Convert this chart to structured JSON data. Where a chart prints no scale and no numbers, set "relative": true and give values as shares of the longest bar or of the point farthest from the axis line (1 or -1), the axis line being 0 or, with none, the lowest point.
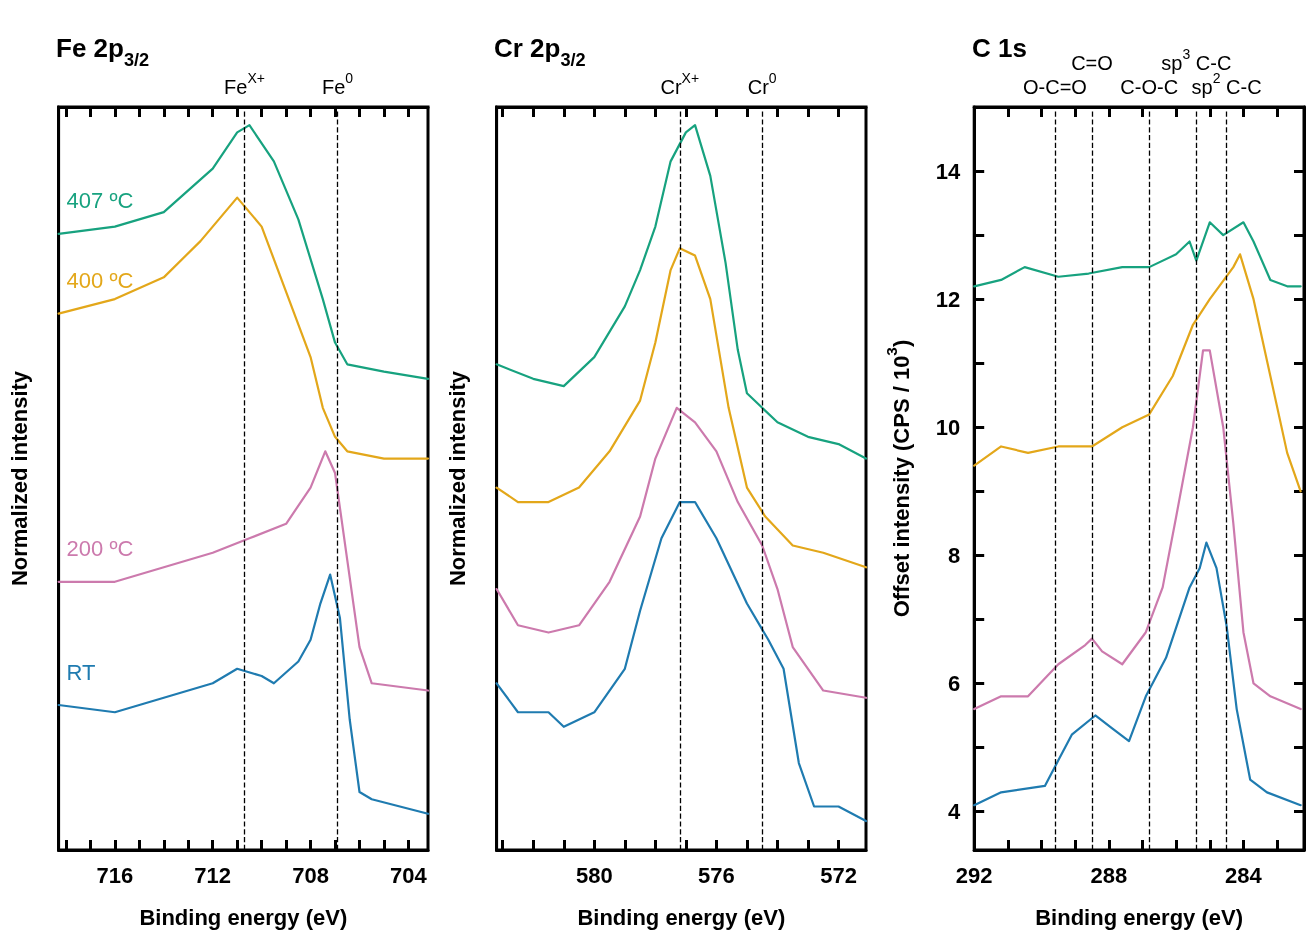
{
  "chart_data": [
    {
      "type": "line",
      "title": "Fe 2p$_{3/2}$",
      "xlabel": "Binding energy (eV)",
      "ylabel": "Normalized intensity",
      "relative": true,
      "xlim": [
        718.3,
        703.2
      ],
      "xticks": [
        704,
        {
          "value": 705,
          "label": null
        },
        {
          "value": 706,
          "label": null
        },
        {
          "value": 707,
          "label": null
        },
        708,
        {
          "value": 709,
          "label": null
        },
        {
          "value": 710,
          "label": null
        },
        {
          "value": 711,
          "label": null
        },
        712,
        {
          "value": 713,
          "label": null
        },
        {
          "value": 714,
          "label": null
        },
        {
          "value": 715,
          "label": null
        },
        716,
        {
          "value": 717,
          "label": null
        },
        {
          "value": 718,
          "label": null
        }
      ],
      "ref_lines": [
        {
          "axis": "x",
          "value": 710.7,
          "label": "Fe$^{X+}$",
          "line_style": "dashed"
        },
        {
          "axis": "x",
          "value": 706.9,
          "label": "Fe$^{0}$",
          "line_style": "dashed"
        }
      ],
      "series": [
        {
          "name": "407 ºC",
          "color": "#17a27f",
          "x": [
            718.3,
            716,
            714,
            712,
            711,
            710.5,
            709.5,
            708.5,
            707.5,
            707,
            706.5,
            705,
            703.2
          ],
          "values": [
            0.85,
            0.86,
            0.88,
            0.94,
            0.99,
            1.0,
            0.95,
            0.87,
            0.76,
            0.7,
            0.67,
            0.66,
            0.65
          ]
        },
        {
          "name": "400 ºC",
          "color": "#e3a71a",
          "x": [
            718.3,
            716,
            714,
            712.5,
            711,
            710,
            709,
            708,
            707.5,
            707,
            706.5,
            705,
            703.2
          ],
          "values": [
            0.74,
            0.76,
            0.79,
            0.84,
            0.9,
            0.86,
            0.77,
            0.68,
            0.61,
            0.57,
            0.55,
            0.54,
            0.54
          ]
        },
        {
          "name": "200 ºC",
          "color": "#cc7aad",
          "x": [
            718.3,
            716,
            714,
            712,
            710.5,
            709,
            708,
            707.4,
            707,
            706.5,
            706,
            705.5,
            703.2
          ],
          "values": [
            0.37,
            0.37,
            0.39,
            0.41,
            0.43,
            0.45,
            0.5,
            0.55,
            0.52,
            0.4,
            0.28,
            0.23,
            0.22
          ]
        },
        {
          "name": "RT",
          "color": "#1f7bb0",
          "x": [
            718.3,
            716,
            714,
            712,
            711,
            710,
            709.5,
            708.5,
            708,
            707.6,
            707.2,
            706.8,
            706.4,
            706,
            705.5,
            703.2
          ],
          "values": [
            0.2,
            0.19,
            0.21,
            0.23,
            0.25,
            0.24,
            0.23,
            0.26,
            0.29,
            0.34,
            0.38,
            0.32,
            0.18,
            0.08,
            0.07,
            0.05
          ]
        }
      ]
    },
    {
      "type": "line",
      "title": "Cr 2p$_{3/2}$",
      "xlabel": "Binding energy (eV)",
      "ylabel": "Normalized intensity",
      "relative": true,
      "xlim": [
        583.2,
        571.1
      ],
      "xticks": [
        572,
        {
          "value": 573,
          "label": null
        },
        {
          "value": 574,
          "label": null
        },
        {
          "value": 575,
          "label": null
        },
        576,
        {
          "value": 577,
          "label": null
        },
        {
          "value": 578,
          "label": null
        },
        {
          "value": 579,
          "label": null
        },
        580,
        {
          "value": 581,
          "label": null
        },
        {
          "value": 582,
          "label": null
        },
        {
          "value": 583,
          "label": null
        }
      ],
      "ref_lines": [
        {
          "axis": "x",
          "value": 577.2,
          "label": "Cr$^{X+}$",
          "line_style": "dashed"
        },
        {
          "axis": "x",
          "value": 574.5,
          "label": "Cr$^{0}$",
          "line_style": "dashed"
        }
      ],
      "series": [
        {
          "color": "#17a27f",
          "x": [
            583.2,
            582,
            581,
            580,
            579,
            578.5,
            578,
            577.5,
            577,
            576.7,
            576.2,
            575.7,
            575.3,
            575,
            574.5,
            574,
            573,
            572,
            571.1
          ],
          "values": [
            0.67,
            0.65,
            0.64,
            0.68,
            0.75,
            0.8,
            0.86,
            0.95,
            0.99,
            1.0,
            0.93,
            0.81,
            0.69,
            0.63,
            0.61,
            0.59,
            0.57,
            0.56,
            0.54
          ]
        },
        {
          "color": "#e3a71a",
          "x": [
            583.2,
            582.5,
            581.5,
            580.5,
            579.5,
            578.5,
            578,
            577.5,
            577.2,
            576.7,
            576.2,
            575.6,
            575,
            574.4,
            573.5,
            572.5,
            571.1
          ],
          "values": [
            0.5,
            0.48,
            0.48,
            0.5,
            0.55,
            0.62,
            0.7,
            0.8,
            0.83,
            0.82,
            0.76,
            0.61,
            0.5,
            0.46,
            0.42,
            0.41,
            0.39
          ]
        },
        {
          "color": "#cc7aad",
          "x": [
            583.2,
            582.5,
            581.5,
            580.5,
            579.5,
            578.5,
            578,
            577.3,
            576.7,
            576,
            575.3,
            574.5,
            574,
            573.5,
            572.5,
            571.1
          ],
          "values": [
            0.36,
            0.31,
            0.3,
            0.31,
            0.37,
            0.46,
            0.54,
            0.61,
            0.59,
            0.55,
            0.48,
            0.42,
            0.36,
            0.28,
            0.22,
            0.21
          ]
        },
        {
          "color": "#1f7bb0",
          "x": [
            583.2,
            582.5,
            581.5,
            581,
            580,
            579,
            578.5,
            577.8,
            577.2,
            576.7,
            576,
            575,
            574.3,
            573.8,
            573.3,
            572.8,
            572,
            571.1
          ],
          "values": [
            0.23,
            0.19,
            0.19,
            0.17,
            0.19,
            0.25,
            0.33,
            0.43,
            0.48,
            0.48,
            0.43,
            0.34,
            0.29,
            0.25,
            0.12,
            0.06,
            0.06,
            0.04
          ]
        }
      ]
    },
    {
      "type": "line",
      "title": "C 1s",
      "xlabel": "Binding energy (eV)",
      "ylabel": "Offset intensity (CPS / 10$^{3}$)",
      "xlim": [
        292,
        282.2
      ],
      "xticks": [
        {
          "value": 283,
          "label": null
        },
        284,
        {
          "value": 285,
          "label": null
        },
        {
          "value": 286,
          "label": null
        },
        {
          "value": 287,
          "label": null
        },
        288,
        {
          "value": 289,
          "label": null
        },
        {
          "value": 290,
          "label": null
        },
        {
          "value": 291,
          "label": null
        },
        292
      ],
      "ylim": [
        3.4,
        15
      ],
      "yticks": [
        4,
        {
          "value": 5,
          "label": null
        },
        6,
        {
          "value": 7,
          "label": null
        },
        8,
        {
          "value": 9,
          "label": null
        },
        10,
        {
          "value": 11,
          "label": null
        },
        12,
        {
          "value": 13,
          "label": null
        },
        14
      ],
      "ref_lines": [
        {
          "axis": "x",
          "value": 289.6,
          "label": "O-C=O",
          "line_style": "dashed"
        },
        {
          "axis": "x",
          "value": 288.5,
          "label": "C=O",
          "line_style": "dashed"
        },
        {
          "axis": "x",
          "value": 286.8,
          "label": "C-O-C",
          "line_style": "dashed"
        },
        {
          "axis": "x",
          "value": 285.4,
          "label": "sp$^{3}$ C-C",
          "line_style": "dashed"
        },
        {
          "axis": "x",
          "value": 284.5,
          "label": "sp$^{2}$ C-C",
          "line_style": "dashed"
        }
      ],
      "series": [
        {
          "color": "#17a27f",
          "x": [
            292,
            291.2,
            290.5,
            289.5,
            288.6,
            287.6,
            286.8,
            286,
            285.6,
            285.4,
            285,
            284.6,
            284,
            283.7,
            283.2,
            282.7,
            282.3
          ],
          "values": [
            12.2,
            12.3,
            12.5,
            12.35,
            12.4,
            12.5,
            12.5,
            12.7,
            12.9,
            12.6,
            13.2,
            13,
            13.2,
            12.9,
            12.3,
            12.2,
            12.2
          ]
        },
        {
          "color": "#e3a71a",
          "x": [
            292,
            291.2,
            290.4,
            289.5,
            288.5,
            287.6,
            286.8,
            286.1,
            285.5,
            285,
            284.3,
            284.1,
            283.7,
            283.2,
            282.7,
            282.3
          ],
          "values": [
            9.4,
            9.7,
            9.6,
            9.7,
            9.7,
            10,
            10.2,
            10.8,
            11.6,
            12,
            12.5,
            12.7,
            12,
            10.8,
            9.6,
            9
          ]
        },
        {
          "color": "#cc7aad",
          "x": [
            292,
            291.2,
            290.4,
            289.5,
            288.7,
            288.5,
            288.2,
            287.6,
            286.9,
            286.4,
            286,
            285.5,
            285.2,
            285,
            284.6,
            284.3,
            284,
            283.7,
            283.2,
            282.3
          ],
          "values": [
            5.6,
            5.8,
            5.8,
            6.3,
            6.6,
            6.7,
            6.5,
            6.3,
            6.8,
            7.5,
            8.6,
            10,
            11.2,
            11.2,
            10,
            8.5,
            6.8,
            6,
            5.8,
            5.6
          ]
        },
        {
          "color": "#1f7bb0",
          "x": [
            292,
            291.2,
            289.9,
            289.5,
            289.1,
            288.4,
            287.9,
            287.4,
            286.9,
            286.3,
            285.6,
            285.3,
            285.1,
            284.8,
            284.5,
            284.2,
            283.8,
            283.3,
            282.3
          ],
          "values": [
            4.1,
            4.3,
            4.4,
            4.8,
            5.2,
            5.5,
            5.3,
            5.1,
            5.8,
            6.4,
            7.5,
            7.8,
            8.2,
            7.8,
            6.9,
            5.6,
            4.5,
            4.3,
            4.1
          ]
        }
      ]
    }
  ]
}
